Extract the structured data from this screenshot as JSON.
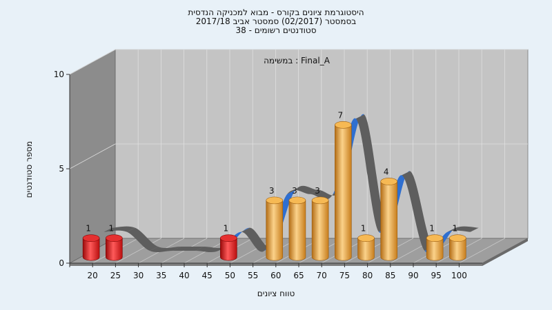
{
  "chart_data": {
    "type": "bar",
    "title": [
      "היסטוגרמת ציונים בקורס - מבוא למכניקה הנדסית",
      "בסמסטר  (02/2017)  סמסטר אביב 2017/18",
      "סטודנטים רשומים - 38"
    ],
    "legend": "במשימה : Final_A",
    "xlabel": "טווח ציונים",
    "ylabel": "מספר סטודנטים",
    "ylim": [
      0,
      10
    ],
    "yticks": [
      0,
      5,
      10
    ],
    "categories": [
      "20",
      "25",
      "30",
      "35",
      "40",
      "45",
      "50",
      "55",
      "60",
      "65",
      "70",
      "75",
      "80",
      "85",
      "90",
      "95",
      "100"
    ],
    "values": [
      1,
      1,
      0,
      0,
      0,
      0,
      1,
      0,
      3,
      3,
      3,
      7,
      1,
      4,
      0,
      1,
      1
    ],
    "failing_threshold": 55,
    "colors": {
      "failing": "#e21b1b",
      "passing": "#f0a93a",
      "ribbon_front": "#2f6fd0",
      "ribbon_back": "#5e5e5e",
      "back_wall": "#c4c4c4",
      "side_wall": "#8c8c8c",
      "floor": "#9e9e9e"
    }
  }
}
